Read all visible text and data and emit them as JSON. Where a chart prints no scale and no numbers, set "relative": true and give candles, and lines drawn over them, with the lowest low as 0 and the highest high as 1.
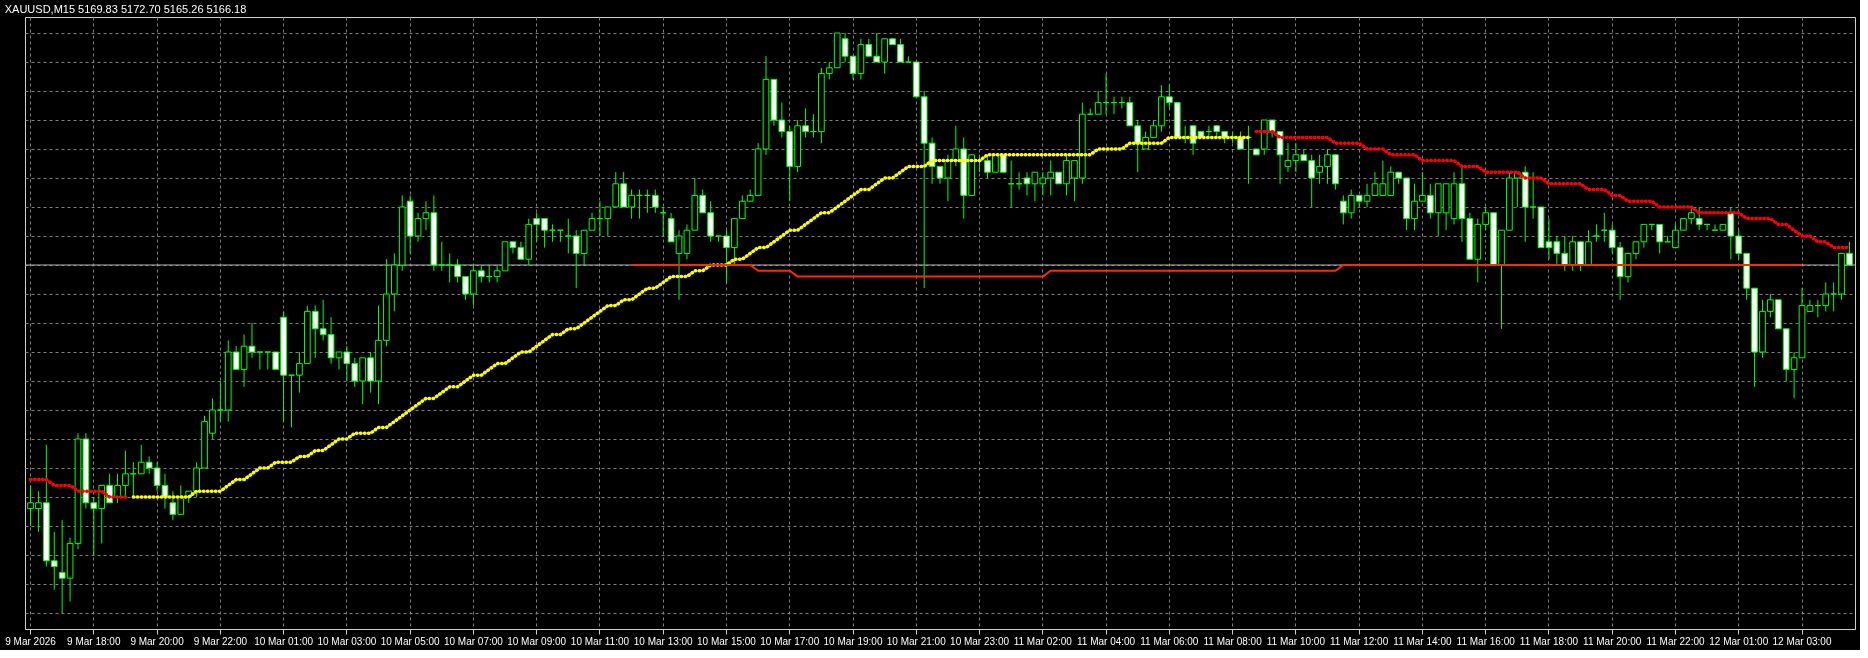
{
  "chart_data": {
    "type": "candlestick",
    "title": "XAUUSD,M15 5169.83 5172.70 5165.26 5166.18",
    "relative": true,
    "grid": true,
    "color": "#00ff00",
    "categories": [
      "9 Mar 2026",
      null,
      null,
      null,
      null,
      null,
      null,
      null,
      "9 Mar 18:00",
      null,
      null,
      null,
      null,
      null,
      null,
      null,
      "9 Mar 20:00",
      null,
      null,
      null,
      null,
      null,
      null,
      null,
      "9 Mar 22:00",
      null,
      null,
      null,
      null,
      null,
      null,
      null,
      "10 Mar 01:00",
      null,
      null,
      null,
      null,
      null,
      null,
      null,
      "10 Mar 03:00",
      null,
      null,
      null,
      null,
      null,
      null,
      null,
      "10 Mar 05:00",
      null,
      null,
      null,
      null,
      null,
      null,
      null,
      "10 Mar 07:00",
      null,
      null,
      null,
      null,
      null,
      null,
      null,
      "10 Mar 09:00",
      null,
      null,
      null,
      null,
      null,
      null,
      null,
      "10 Mar 11:00",
      null,
      null,
      null,
      null,
      null,
      null,
      null,
      "10 Mar 13:00",
      null,
      null,
      null,
      null,
      null,
      null,
      null,
      "10 Mar 15:00",
      null,
      null,
      null,
      null,
      null,
      null,
      null,
      "10 Mar 17:00",
      null,
      null,
      null,
      null,
      null,
      null,
      null,
      "10 Mar 19:00",
      null,
      null,
      null,
      null,
      null,
      null,
      null,
      "10 Mar 21:00",
      null,
      null,
      null,
      null,
      null,
      null,
      null,
      "10 Mar 23:00",
      null,
      null,
      null,
      null,
      null,
      null,
      null,
      "11 Mar 02:00",
      null,
      null,
      null,
      null,
      null,
      null,
      null,
      "11 Mar 04:00",
      null,
      null,
      null,
      null,
      null,
      null,
      null,
      "11 Mar 06:00",
      null,
      null,
      null,
      null,
      null,
      null,
      null,
      "11 Mar 08:00",
      null,
      null,
      null,
      null,
      null,
      null,
      null,
      "11 Mar 10:00",
      null,
      null,
      null,
      null,
      null,
      null,
      null,
      "11 Mar 12:00",
      null,
      null,
      null,
      null,
      null,
      null,
      null,
      "11 Mar 14:00",
      null,
      null,
      null,
      null,
      null,
      null,
      null,
      "11 Mar 16:00",
      null,
      null,
      null,
      null,
      null,
      null,
      null,
      "11 Mar 18:00",
      null,
      null,
      null,
      null,
      null,
      null,
      null,
      "11 Mar 20:00",
      null,
      null,
      null,
      null,
      null,
      null,
      null,
      "11 Mar 22:00",
      null,
      null,
      null,
      null,
      null,
      null,
      null,
      "12 Mar 01:00",
      null,
      null,
      null,
      null,
      null,
      null,
      null,
      "12 Mar 03:00",
      null,
      null,
      null,
      null,
      null,
      null
    ],
    "ohlc": [
      [
        0.18,
        0.22,
        0.15,
        0.19
      ],
      [
        0.18,
        0.21,
        0.14,
        0.19
      ],
      [
        0.19,
        0.29,
        0.08,
        0.09
      ],
      [
        0.09,
        0.14,
        0.04,
        0.08
      ],
      [
        0.07,
        0.16,
        0,
        0.06
      ],
      [
        0.06,
        0.13,
        0.02,
        0.12
      ],
      [
        0.12,
        0.31,
        0.11,
        0.3
      ],
      [
        0.3,
        0.31,
        0.18,
        0.19
      ],
      [
        0.19,
        0.2,
        0.1,
        0.18
      ],
      [
        0.18,
        0.22,
        0.12,
        0.22
      ],
      [
        0.22,
        0.24,
        0.19,
        0.19
      ],
      [
        0.2,
        0.24,
        0.19,
        0.22
      ],
      [
        0.22,
        0.28,
        0.2,
        0.24
      ],
      [
        0.24,
        0.26,
        0.2,
        0.24
      ],
      [
        0.24,
        0.29,
        0.24,
        0.26
      ],
      [
        0.26,
        0.27,
        0.24,
        0.25
      ],
      [
        0.25,
        0.26,
        0.21,
        0.22
      ],
      [
        0.22,
        0.24,
        0.18,
        0.2
      ],
      [
        0.19,
        0.21,
        0.16,
        0.17
      ],
      [
        0.17,
        0.22,
        0.17,
        0.2
      ],
      [
        0.2,
        0.21,
        0.19,
        0.21
      ],
      [
        0.21,
        0.26,
        0.2,
        0.25
      ],
      [
        0.25,
        0.34,
        0.25,
        0.33
      ],
      [
        0.31,
        0.37,
        0.3,
        0.35
      ],
      [
        0.35,
        0.4,
        0.33,
        0.35
      ],
      [
        0.35,
        0.47,
        0.33,
        0.45
      ],
      [
        0.45,
        0.46,
        0.42,
        0.42
      ],
      [
        0.42,
        0.48,
        0.39,
        0.46
      ],
      [
        0.46,
        0.5,
        0.44,
        0.45
      ],
      [
        0.45,
        0.45,
        0.42,
        0.45
      ],
      [
        0.45,
        0.45,
        0.42,
        0.45
      ],
      [
        0.45,
        0.45,
        0.42,
        0.42
      ],
      [
        0.51,
        0.52,
        0.33,
        0.41
      ],
      [
        0.41,
        0.41,
        0.32,
        0.41
      ],
      [
        0.41,
        0.45,
        0.38,
        0.43
      ],
      [
        0.43,
        0.53,
        0.43,
        0.52
      ],
      [
        0.52,
        0.53,
        0.44,
        0.49
      ],
      [
        0.49,
        0.54,
        0.47,
        0.48
      ],
      [
        0.48,
        0.51,
        0.43,
        0.44
      ],
      [
        0.44,
        0.45,
        0.42,
        0.45
      ],
      [
        0.45,
        0.46,
        0.4,
        0.43
      ],
      [
        0.43,
        0.44,
        0.39,
        0.4
      ],
      [
        0.4,
        0.44,
        0.36,
        0.44
      ],
      [
        0.44,
        0.45,
        0.38,
        0.4
      ],
      [
        0.4,
        0.53,
        0.36,
        0.47
      ],
      [
        0.47,
        0.61,
        0.46,
        0.55
      ],
      [
        0.55,
        0.62,
        0.52,
        0.6
      ],
      [
        0.6,
        0.72,
        0.59,
        0.7
      ],
      [
        0.71,
        0.72,
        0.62,
        0.65
      ],
      [
        0.65,
        0.69,
        0.64,
        0.68
      ],
      [
        0.68,
        0.71,
        0.66,
        0.69
      ],
      [
        0.69,
        0.72,
        0.59,
        0.6
      ],
      [
        0.6,
        0.64,
        0.59,
        0.6
      ],
      [
        0.6,
        0.62,
        0.57,
        0.6
      ],
      [
        0.6,
        0.61,
        0.57,
        0.58
      ],
      [
        0.58,
        0.58,
        0.54,
        0.55
      ],
      [
        0.55,
        0.6,
        0.53,
        0.59
      ],
      [
        0.59,
        0.6,
        0.57,
        0.58
      ],
      [
        0.58,
        0.6,
        0.57,
        0.58
      ],
      [
        0.58,
        0.6,
        0.57,
        0.59
      ],
      [
        0.59,
        0.64,
        0.59,
        0.64
      ],
      [
        0.64,
        0.64,
        0.62,
        0.63
      ],
      [
        0.63,
        0.64,
        0.61,
        0.61
      ],
      [
        0.61,
        0.68,
        0.6,
        0.67
      ],
      [
        0.68,
        0.69,
        0.64,
        0.67
      ],
      [
        0.68,
        0.68,
        0.63,
        0.66
      ],
      [
        0.66,
        0.67,
        0.64,
        0.66
      ],
      [
        0.66,
        0.66,
        0.64,
        0.66
      ],
      [
        0.65,
        0.68,
        0.62,
        0.65
      ],
      [
        0.65,
        0.66,
        0.56,
        0.62
      ],
      [
        0.62,
        0.66,
        0.6,
        0.66
      ],
      [
        0.66,
        0.69,
        0.66,
        0.68
      ],
      [
        0.68,
        0.71,
        0.65,
        0.68
      ],
      [
        0.68,
        0.7,
        0.65,
        0.7
      ],
      [
        0.7,
        0.76,
        0.7,
        0.74
      ],
      [
        0.74,
        0.76,
        0.7,
        0.7
      ],
      [
        0.7,
        0.73,
        0.68,
        0.72
      ],
      [
        0.72,
        0.73,
        0.68,
        0.72
      ],
      [
        0.72,
        0.73,
        0.69,
        0.72
      ],
      [
        0.72,
        0.73,
        0.69,
        0.7
      ],
      [
        0.69,
        0.7,
        0.65,
        0.69
      ],
      [
        0.68,
        0.69,
        0.64,
        0.64
      ],
      [
        0.62,
        0.66,
        0.54,
        0.65
      ],
      [
        0.62,
        0.67,
        0.61,
        0.66
      ],
      [
        0.66,
        0.75,
        0.66,
        0.72
      ],
      [
        0.72,
        0.73,
        0.69,
        0.69
      ],
      [
        0.69,
        0.71,
        0.64,
        0.65
      ],
      [
        0.65,
        0.65,
        0.64,
        0.65
      ],
      [
        0.65,
        0.66,
        0.57,
        0.63
      ],
      [
        0.63,
        0.68,
        0.6,
        0.68
      ],
      [
        0.68,
        0.72,
        0.68,
        0.71
      ],
      [
        0.71,
        0.73,
        0.71,
        0.72
      ],
      [
        0.72,
        0.81,
        0.72,
        0.8
      ],
      [
        0.8,
        0.96,
        0.79,
        0.92
      ],
      [
        0.92,
        0.92,
        0.84,
        0.85
      ],
      [
        0.85,
        0.88,
        0.82,
        0.83
      ],
      [
        0.83,
        0.84,
        0.71,
        0.77
      ],
      [
        0.77,
        0.85,
        0.76,
        0.84
      ],
      [
        0.84,
        0.87,
        0.82,
        0.83
      ],
      [
        0.83,
        0.86,
        0.82,
        0.83
      ],
      [
        0.83,
        0.94,
        0.81,
        0.93
      ],
      [
        0.93,
        0.95,
        0.92,
        0.94
      ],
      [
        0.94,
        1,
        0.94,
        1
      ],
      [
        0.99,
        1,
        0.95,
        0.96
      ],
      [
        0.96,
        0.96,
        0.92,
        0.93
      ],
      [
        0.93,
        0.99,
        0.92,
        0.98
      ],
      [
        0.98,
        0.99,
        0.96,
        0.96
      ],
      [
        0.96,
        1,
        0.95,
        0.95
      ],
      [
        0.95,
        0.99,
        0.93,
        0.99
      ],
      [
        0.99,
        0.99,
        0.98,
        0.98
      ],
      [
        0.98,
        0.99,
        0.95,
        0.95
      ],
      [
        0.95,
        0.96,
        0.95,
        0.95
      ],
      [
        0.95,
        0.95,
        0.89,
        0.89
      ],
      [
        0.89,
        0.9,
        0.56,
        0.81
      ],
      [
        0.81,
        0.82,
        0.74,
        0.77
      ],
      [
        0.77,
        0.77,
        0.74,
        0.75
      ],
      [
        0.75,
        0.79,
        0.71,
        0.78
      ],
      [
        0.78,
        0.84,
        0.77,
        0.8
      ],
      [
        0.8,
        0.82,
        0.68,
        0.72
      ],
      [
        0.72,
        0.79,
        0.72,
        0.79
      ],
      [
        0.78,
        0.79,
        0.76,
        0.78
      ],
      [
        0.78,
        0.79,
        0.75,
        0.76
      ],
      [
        0.76,
        0.79,
        0.76,
        0.79
      ],
      [
        0.79,
        0.79,
        0.76,
        0.76
      ],
      [
        0.74,
        0.78,
        0.7,
        0.74
      ],
      [
        0.74,
        0.76,
        0.73,
        0.74
      ],
      [
        0.75,
        0.76,
        0.72,
        0.74
      ],
      [
        0.74,
        0.76,
        0.71,
        0.76
      ],
      [
        0.74,
        0.76,
        0.72,
        0.75
      ],
      [
        0.75,
        0.78,
        0.72,
        0.76
      ],
      [
        0.76,
        0.76,
        0.74,
        0.74
      ],
      [
        0.74,
        0.79,
        0.72,
        0.78
      ],
      [
        0.75,
        0.78,
        0.71,
        0.78
      ],
      [
        0.75,
        0.88,
        0.74,
        0.86
      ],
      [
        0.86,
        0.87,
        0.86,
        0.86
      ],
      [
        0.86,
        0.9,
        0.86,
        0.88
      ],
      [
        0.88,
        0.93,
        0.86,
        0.88
      ],
      [
        0.88,
        0.89,
        0.86,
        0.88
      ],
      [
        0.88,
        0.89,
        0.87,
        0.88
      ],
      [
        0.88,
        0.89,
        0.84,
        0.84
      ],
      [
        0.84,
        0.85,
        0.76,
        0.81
      ],
      [
        0.8,
        0.83,
        0.8,
        0.82
      ],
      [
        0.82,
        0.85,
        0.82,
        0.84
      ],
      [
        0.84,
        0.91,
        0.83,
        0.89
      ],
      [
        0.89,
        0.91,
        0.87,
        0.88
      ],
      [
        0.88,
        0.88,
        0.82,
        0.82
      ],
      [
        0.82,
        0.84,
        0.81,
        0.82
      ],
      [
        0.84,
        0.84,
        0.79,
        0.81
      ],
      [
        0.83,
        0.83,
        0.82,
        0.82
      ],
      [
        0.83,
        0.84,
        0.82,
        0.83
      ],
      [
        0.84,
        0.84,
        0.82,
        0.83
      ],
      [
        0.83,
        0.83,
        0.81,
        0.82
      ],
      [
        0.82,
        0.83,
        0.81,
        0.82
      ],
      [
        0.82,
        0.83,
        0.8,
        0.8
      ],
      [
        0.82,
        0.84,
        0.74,
        0.82
      ],
      [
        0.8,
        0.8,
        0.79,
        0.79
      ],
      [
        0.8,
        0.85,
        0.79,
        0.85
      ],
      [
        0.85,
        0.85,
        0.82,
        0.83
      ],
      [
        0.83,
        0.83,
        0.74,
        0.79
      ],
      [
        0.77,
        0.81,
        0.76,
        0.78
      ],
      [
        0.78,
        0.81,
        0.76,
        0.79
      ],
      [
        0.79,
        0.8,
        0.78,
        0.78
      ],
      [
        0.78,
        0.79,
        0.7,
        0.75
      ],
      [
        0.76,
        0.79,
        0.74,
        0.77
      ],
      [
        0.77,
        0.8,
        0.74,
        0.79
      ],
      [
        0.79,
        0.79,
        0.73,
        0.74
      ],
      [
        0.71,
        0.72,
        0.67,
        0.69
      ],
      [
        0.69,
        0.73,
        0.68,
        0.72
      ],
      [
        0.72,
        0.72,
        0.7,
        0.71
      ],
      [
        0.71,
        0.74,
        0.7,
        0.72
      ],
      [
        0.72,
        0.76,
        0.72,
        0.74
      ],
      [
        0.72,
        0.78,
        0.72,
        0.74
      ],
      [
        0.72,
        0.77,
        0.72,
        0.76
      ],
      [
        0.76,
        0.76,
        0.74,
        0.75
      ],
      [
        0.75,
        0.75,
        0.66,
        0.68
      ],
      [
        0.68,
        0.74,
        0.66,
        0.71
      ],
      [
        0.71,
        0.76,
        0.71,
        0.72
      ],
      [
        0.72,
        0.74,
        0.68,
        0.69
      ],
      [
        0.69,
        0.74,
        0.65,
        0.74
      ],
      [
        0.69,
        0.74,
        0.66,
        0.74
      ],
      [
        0.68,
        0.76,
        0.67,
        0.74
      ],
      [
        0.74,
        0.77,
        0.64,
        0.68
      ],
      [
        0.68,
        0.69,
        0.61,
        0.61
      ],
      [
        0.61,
        0.68,
        0.57,
        0.67
      ],
      [
        0.67,
        0.7,
        0.66,
        0.69
      ],
      [
        0.69,
        0.69,
        0.6,
        0.6
      ],
      [
        0.6,
        0.66,
        0.49,
        0.66
      ],
      [
        0.66,
        0.76,
        0.66,
        0.75
      ],
      [
        0.75,
        0.76,
        0.7,
        0.76
      ],
      [
        0.76,
        0.77,
        0.64,
        0.7
      ],
      [
        0.7,
        0.76,
        0.68,
        0.7
      ],
      [
        0.7,
        0.7,
        0.63,
        0.63
      ],
      [
        0.64,
        0.68,
        0.61,
        0.63
      ],
      [
        0.64,
        0.65,
        0.6,
        0.62
      ],
      [
        0.62,
        0.65,
        0.59,
        0.6
      ],
      [
        0.6,
        0.65,
        0.59,
        0.64
      ],
      [
        0.64,
        0.64,
        0.59,
        0.6
      ],
      [
        0.6,
        0.66,
        0.6,
        0.64
      ],
      [
        0.65,
        0.67,
        0.64,
        0.65
      ],
      [
        0.66,
        0.69,
        0.64,
        0.66
      ],
      [
        0.66,
        0.67,
        0.62,
        0.63
      ],
      [
        0.63,
        0.64,
        0.54,
        0.58
      ],
      [
        0.58,
        0.62,
        0.57,
        0.62
      ],
      [
        0.62,
        0.64,
        0.61,
        0.64
      ],
      [
        0.64,
        0.67,
        0.63,
        0.67
      ],
      [
        0.67,
        0.67,
        0.66,
        0.67
      ],
      [
        0.67,
        0.67,
        0.62,
        0.64
      ],
      [
        0.64,
        0.65,
        0.64,
        0.64
      ],
      [
        0.63,
        0.67,
        0.63,
        0.66
      ],
      [
        0.66,
        0.68,
        0.66,
        0.68
      ],
      [
        0.68,
        0.7,
        0.67,
        0.69
      ],
      [
        0.68,
        0.7,
        0.66,
        0.67
      ],
      [
        0.67,
        0.67,
        0.66,
        0.67
      ],
      [
        0.66,
        0.67,
        0.66,
        0.66
      ],
      [
        0.66,
        0.67,
        0.66,
        0.67
      ],
      [
        0.69,
        0.7,
        0.61,
        0.65
      ],
      [
        0.65,
        0.66,
        0.61,
        0.62
      ],
      [
        0.62,
        0.62,
        0.54,
        0.56
      ],
      [
        0.56,
        0.56,
        0.39,
        0.45
      ],
      [
        0.45,
        0.54,
        0.44,
        0.52
      ],
      [
        0.52,
        0.55,
        0.51,
        0.54
      ],
      [
        0.54,
        0.54,
        0.49,
        0.49
      ],
      [
        0.49,
        0.49,
        0.4,
        0.42
      ],
      [
        0.42,
        0.45,
        0.37,
        0.44
      ],
      [
        0.44,
        0.56,
        0.44,
        0.53
      ],
      [
        0.52,
        0.54,
        0.52,
        0.53
      ],
      [
        0.53,
        0.54,
        0.51,
        0.53
      ],
      [
        0.53,
        0.57,
        0.52,
        0.55
      ],
      [
        0.55,
        0.57,
        0.52,
        0.55
      ],
      [
        0.55,
        0.62,
        0.54,
        0.62
      ],
      [
        0.62,
        0.64,
        0.6,
        0.6
      ]
    ],
    "series": [
      {
        "type": "line",
        "line_style": "dotted",
        "color": "#ffff00",
        "values": [
          null,
          null,
          null,
          null,
          null,
          null,
          null,
          null,
          null,
          null,
          null,
          null,
          null,
          0.2,
          0.2,
          0.2,
          0.2,
          0.2,
          0.2,
          0.2,
          0.2,
          0.21,
          0.21,
          0.21,
          0.21,
          0.22,
          0.23,
          0.23,
          0.24,
          0.25,
          0.25,
          0.26,
          0.26,
          0.26,
          0.27,
          0.27,
          0.28,
          0.28,
          0.29,
          0.3,
          0.3,
          0.31,
          0.31,
          0.31,
          0.32,
          0.32,
          0.33,
          0.34,
          0.35,
          0.36,
          0.37,
          0.37,
          0.38,
          0.39,
          0.39,
          0.4,
          0.41,
          0.41,
          0.42,
          0.43,
          0.43,
          0.44,
          0.45,
          0.45,
          0.46,
          0.47,
          0.48,
          0.48,
          0.49,
          0.49,
          0.5,
          0.51,
          0.52,
          0.53,
          0.53,
          0.54,
          0.54,
          0.55,
          0.56,
          0.56,
          0.57,
          0.58,
          0.58,
          0.58,
          0.59,
          0.59,
          0.6,
          0.6,
          0.6,
          0.61,
          0.61,
          0.62,
          0.63,
          0.63,
          0.64,
          0.65,
          0.66,
          0.66,
          0.67,
          0.68,
          0.69,
          0.69,
          0.7,
          0.71,
          0.72,
          0.73,
          0.73,
          0.74,
          0.75,
          0.75,
          0.76,
          0.77,
          0.77,
          0.77,
          0.78,
          0.78,
          0.78,
          0.78,
          0.78,
          0.78,
          0.78,
          0.79,
          0.79,
          0.79,
          0.79,
          0.79,
          0.79,
          0.79,
          0.79,
          0.79,
          0.79,
          0.79,
          0.79,
          0.79,
          0.79,
          0.8,
          0.8,
          0.8,
          0.8,
          0.81,
          0.81,
          0.81,
          0.81,
          0.81,
          0.82,
          0.82,
          0.82,
          0.82,
          0.82,
          0.82,
          0.82,
          0.82,
          0.82,
          0.82,
          0.82,
          null,
          null,
          null,
          null,
          null,
          null,
          null,
          null,
          null,
          null,
          null,
          null,
          null,
          null,
          null,
          null,
          null,
          null,
          null,
          null,
          null,
          null,
          null,
          null,
          null,
          null,
          null,
          null,
          null,
          null,
          null,
          null,
          null,
          null,
          null,
          null,
          null,
          null,
          null,
          null,
          null,
          null,
          null,
          null,
          null,
          null,
          null,
          null,
          null,
          null,
          null,
          null,
          null,
          null,
          null,
          null,
          null,
          null,
          null,
          null,
          null,
          null,
          null,
          null,
          null,
          null,
          null,
          null,
          null,
          null,
          null,
          null,
          null,
          null,
          null,
          null
        ]
      },
      {
        "type": "line",
        "line_style": "dotted",
        "color": "#ff0000",
        "values": [
          0.23,
          0.23,
          0.23,
          0.22,
          0.22,
          0.22,
          0.21,
          0.21,
          0.21,
          0.21,
          0.2,
          0.2,
          0.2,
          null,
          null,
          null,
          null,
          null,
          null,
          null,
          null,
          null,
          null,
          null,
          null,
          null,
          null,
          null,
          null,
          null,
          null,
          null,
          null,
          null,
          null,
          null,
          null,
          null,
          null,
          null,
          null,
          null,
          null,
          null,
          null,
          null,
          null,
          null,
          null,
          null,
          null,
          null,
          null,
          null,
          null,
          null,
          null,
          null,
          null,
          null,
          null,
          null,
          null,
          null,
          null,
          null,
          null,
          null,
          null,
          null,
          null,
          null,
          null,
          null,
          null,
          null,
          null,
          null,
          null,
          null,
          null,
          null,
          null,
          null,
          null,
          null,
          null,
          null,
          null,
          null,
          null,
          null,
          null,
          null,
          null,
          null,
          null,
          null,
          null,
          null,
          null,
          null,
          null,
          null,
          null,
          null,
          null,
          null,
          null,
          null,
          null,
          null,
          null,
          null,
          null,
          null,
          null,
          null,
          null,
          null,
          null,
          null,
          null,
          null,
          null,
          null,
          null,
          null,
          null,
          null,
          null,
          null,
          null,
          null,
          null,
          null,
          null,
          null,
          null,
          null,
          null,
          null,
          null,
          null,
          null,
          null,
          null,
          null,
          null,
          null,
          null,
          null,
          null,
          null,
          null,
          0.83,
          0.83,
          0.83,
          0.82,
          0.82,
          0.82,
          0.82,
          0.82,
          0.82,
          0.82,
          0.81,
          0.81,
          0.81,
          0.81,
          0.8,
          0.8,
          0.8,
          0.79,
          0.79,
          0.79,
          0.79,
          0.78,
          0.78,
          0.78,
          0.78,
          0.78,
          0.77,
          0.77,
          0.77,
          0.76,
          0.76,
          0.76,
          0.76,
          0.76,
          0.75,
          0.75,
          0.75,
          0.74,
          0.74,
          0.74,
          0.74,
          0.74,
          0.73,
          0.73,
          0.73,
          0.72,
          0.72,
          0.71,
          0.71,
          0.71,
          0.71,
          0.7,
          0.7,
          0.7,
          0.7,
          0.7,
          0.69,
          0.69,
          0.69,
          0.69,
          0.69,
          0.69,
          0.68,
          0.68,
          0.68,
          0.68,
          0.67,
          0.67,
          0.66,
          0.65,
          0.65,
          0.64,
          0.64,
          0.63,
          0.63,
          0.63
        ]
      },
      {
        "type": "line",
        "color": "#ff2a00",
        "values": [
          null,
          null,
          null,
          null,
          null,
          null,
          null,
          null,
          null,
          null,
          null,
          null,
          null,
          null,
          null,
          null,
          null,
          null,
          null,
          null,
          null,
          null,
          null,
          null,
          null,
          null,
          null,
          null,
          null,
          null,
          null,
          null,
          null,
          null,
          null,
          null,
          null,
          null,
          null,
          null,
          null,
          null,
          null,
          null,
          null,
          null,
          null,
          null,
          null,
          null,
          null,
          null,
          null,
          null,
          null,
          null,
          null,
          null,
          null,
          null,
          null,
          null,
          null,
          null,
          null,
          null,
          null,
          null,
          null,
          null,
          null,
          null,
          null,
          null,
          null,
          null,
          0.6,
          0.6,
          0.6,
          0.6,
          0.6,
          0.6,
          0.6,
          0.6,
          0.6,
          0.6,
          0.6,
          0.6,
          0.6,
          0.6,
          0.6,
          0.6,
          0.59,
          0.59,
          0.59,
          0.59,
          0.59,
          0.58,
          0.58,
          0.58,
          0.58,
          0.58,
          0.58,
          0.58,
          0.58,
          0.58,
          0.58,
          0.58,
          0.58,
          0.58,
          0.58,
          0.58,
          0.58,
          0.58,
          0.58,
          0.58,
          0.58,
          0.58,
          0.58,
          0.58,
          0.58,
          0.58,
          0.58,
          0.58,
          0.58,
          0.58,
          0.58,
          0.58,
          0.58,
          0.59,
          0.59,
          0.59,
          0.59,
          0.59,
          0.59,
          0.59,
          0.59,
          0.59,
          0.59,
          0.59,
          0.59,
          0.59,
          0.59,
          0.59,
          0.59,
          0.59,
          0.59,
          0.59,
          0.59,
          0.59,
          0.59,
          0.59,
          0.59,
          0.59,
          0.59,
          0.59,
          0.59,
          0.59,
          0.59,
          0.59,
          0.59,
          0.59,
          0.59,
          0.59,
          0.59,
          0.59,
          0.6,
          0.6,
          0.6,
          0.6,
          0.6,
          0.6,
          0.6,
          0.6,
          0.6,
          0.6,
          0.6,
          0.6,
          0.6,
          0.6,
          0.6,
          0.6,
          0.6,
          0.6,
          0.6,
          0.6,
          0.6,
          0.6,
          0.6,
          0.6,
          0.6,
          0.6,
          0.6,
          0.6,
          0.6,
          0.6,
          0.6,
          0.6,
          0.6,
          0.6,
          0.6,
          0.6,
          0.6,
          0.6,
          0.6,
          0.6,
          0.6,
          0.6,
          0.6,
          0.6,
          0.6,
          0.6,
          0.6,
          0.6,
          0.6,
          0.6,
          0.6,
          0.6,
          0.6,
          0.6,
          0.6,
          0.6,
          0.6,
          0.6,
          0.6,
          null,
          null,
          null,
          null,
          null,
          null
        ]
      }
    ],
    "ref_lines": [
      {
        "axis": "y",
        "value": 0.6,
        "color": "#b4b4b4"
      }
    ]
  }
}
